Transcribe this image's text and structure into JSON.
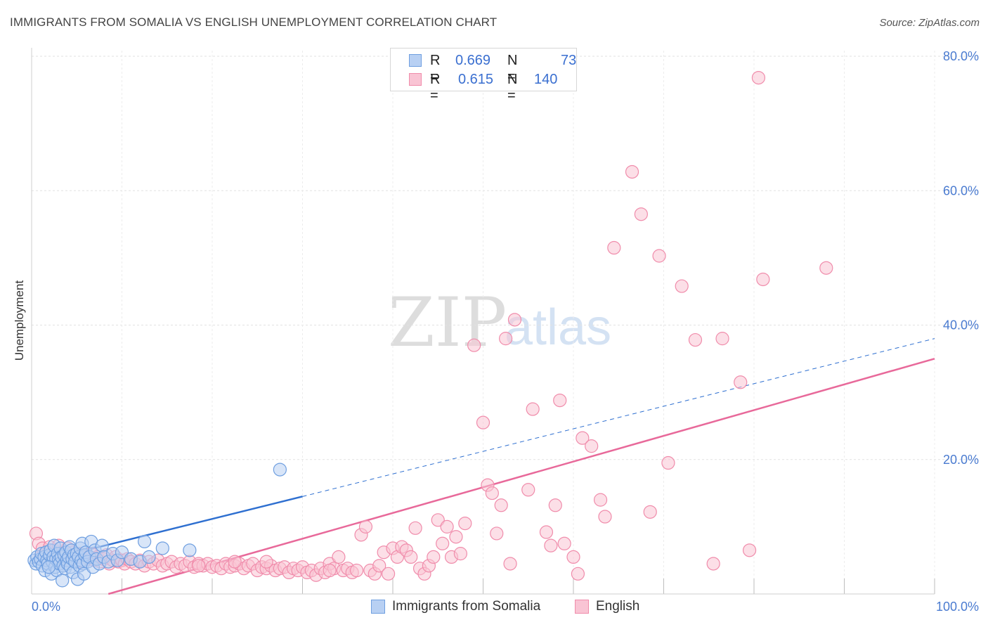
{
  "chart_data": {
    "type": "scatter",
    "title": "IMMIGRANTS FROM SOMALIA VS ENGLISH UNEMPLOYMENT CORRELATION CHART",
    "source": "Source: ZipAtlas.com",
    "xlabel": "",
    "ylabel": "Unemployment",
    "xlim": [
      0,
      100
    ],
    "ylim": [
      0,
      80
    ],
    "x_ticks": [
      "0.0%",
      "100.0%"
    ],
    "y_ticks": [
      {
        "value": 20,
        "label": "20.0%"
      },
      {
        "value": 40,
        "label": "40.0%"
      },
      {
        "value": 60,
        "label": "60.0%"
      },
      {
        "value": 80,
        "label": "80.0%"
      }
    ],
    "grid": true,
    "watermark": {
      "zip": "ZIP",
      "atlas": "atlas"
    },
    "legend": {
      "rows": [
        {
          "r_label": "R =",
          "r_value": "0.669",
          "n_label": "N =",
          "n_value": "73",
          "series": "Immigrants from Somalia"
        },
        {
          "r_label": "R =",
          "r_value": "0.615",
          "n_label": "N =",
          "n_value": "140",
          "series": "English"
        }
      ]
    },
    "series": [
      {
        "name": "Immigrants from Somalia",
        "color": "#6f9fe0",
        "fill": "#b8d0f3",
        "line_color": "#2e6fd0",
        "trend": {
          "x0": 0,
          "y0": 4.5,
          "x1": 30,
          "y1": 14.5,
          "x_dash_end": 100,
          "y_dash_end": 38.0
        },
        "points": [
          [
            0.3,
            5.0
          ],
          [
            0.5,
            4.5
          ],
          [
            0.6,
            5.5
          ],
          [
            0.8,
            4.8
          ],
          [
            1.0,
            5.2
          ],
          [
            1.1,
            6.0
          ],
          [
            1.2,
            4.2
          ],
          [
            1.4,
            5.5
          ],
          [
            1.5,
            3.5
          ],
          [
            1.6,
            6.2
          ],
          [
            1.7,
            5.0
          ],
          [
            1.8,
            4.5
          ],
          [
            2.0,
            5.8
          ],
          [
            2.1,
            6.5
          ],
          [
            2.2,
            3.0
          ],
          [
            2.3,
            4.8
          ],
          [
            2.4,
            5.5
          ],
          [
            2.5,
            7.2
          ],
          [
            2.6,
            4.0
          ],
          [
            2.7,
            5.2
          ],
          [
            2.8,
            3.5
          ],
          [
            2.9,
            6.0
          ],
          [
            3.0,
            5.0
          ],
          [
            3.1,
            4.5
          ],
          [
            3.2,
            6.8
          ],
          [
            3.3,
            5.5
          ],
          [
            3.4,
            2.0
          ],
          [
            3.5,
            4.2
          ],
          [
            3.6,
            5.8
          ],
          [
            3.7,
            3.8
          ],
          [
            3.8,
            6.2
          ],
          [
            3.9,
            5.0
          ],
          [
            4.0,
            4.5
          ],
          [
            4.1,
            5.5
          ],
          [
            4.2,
            7.0
          ],
          [
            4.3,
            4.0
          ],
          [
            4.4,
            6.5
          ],
          [
            4.5,
            5.2
          ],
          [
            4.6,
            3.2
          ],
          [
            4.7,
            5.8
          ],
          [
            4.8,
            4.8
          ],
          [
            5.0,
            6.0
          ],
          [
            5.1,
            2.2
          ],
          [
            5.2,
            5.5
          ],
          [
            5.3,
            4.2
          ],
          [
            5.4,
            6.8
          ],
          [
            5.5,
            5.0
          ],
          [
            5.6,
            7.5
          ],
          [
            5.7,
            4.5
          ],
          [
            5.8,
            3.0
          ],
          [
            5.9,
            5.8
          ],
          [
            6.0,
            6.2
          ],
          [
            6.2,
            4.8
          ],
          [
            6.4,
            5.5
          ],
          [
            6.6,
            7.8
          ],
          [
            6.8,
            4.0
          ],
          [
            7.0,
            6.5
          ],
          [
            7.2,
            5.2
          ],
          [
            7.5,
            4.5
          ],
          [
            7.8,
            7.2
          ],
          [
            8.0,
            5.5
          ],
          [
            8.5,
            4.8
          ],
          [
            9.0,
            6.0
          ],
          [
            9.5,
            5.0
          ],
          [
            10.0,
            6.2
          ],
          [
            11.0,
            5.2
          ],
          [
            12.0,
            4.8
          ],
          [
            12.5,
            7.8
          ],
          [
            13.0,
            5.5
          ],
          [
            14.5,
            6.8
          ],
          [
            17.5,
            6.5
          ],
          [
            27.5,
            18.5
          ],
          [
            1.9,
            4.0
          ]
        ]
      },
      {
        "name": "English",
        "color": "#f08cab",
        "fill": "#f9c4d4",
        "line_color": "#e8699a",
        "trend": {
          "x0": 8.5,
          "y0": 0.0,
          "x1": 100,
          "y1": 35.0
        },
        "points": [
          [
            0.5,
            9.0
          ],
          [
            0.8,
            7.5
          ],
          [
            1.0,
            5.5
          ],
          [
            1.2,
            6.8
          ],
          [
            1.5,
            5.0
          ],
          [
            1.8,
            6.2
          ],
          [
            2.0,
            7.0
          ],
          [
            2.2,
            5.8
          ],
          [
            2.5,
            6.5
          ],
          [
            2.8,
            5.2
          ],
          [
            3.0,
            7.2
          ],
          [
            3.3,
            6.0
          ],
          [
            3.6,
            5.5
          ],
          [
            4.0,
            6.8
          ],
          [
            4.3,
            5.0
          ],
          [
            4.6,
            6.2
          ],
          [
            5.0,
            5.5
          ],
          [
            5.3,
            6.0
          ],
          [
            5.6,
            4.8
          ],
          [
            6.0,
            5.8
          ],
          [
            6.3,
            5.2
          ],
          [
            6.6,
            6.0
          ],
          [
            7.0,
            5.0
          ],
          [
            7.3,
            5.5
          ],
          [
            7.6,
            4.8
          ],
          [
            8.0,
            5.2
          ],
          [
            8.3,
            5.8
          ],
          [
            8.6,
            4.5
          ],
          [
            9.0,
            5.0
          ],
          [
            9.3,
            5.5
          ],
          [
            9.6,
            4.8
          ],
          [
            10.0,
            5.0
          ],
          [
            10.3,
            4.5
          ],
          [
            10.6,
            5.2
          ],
          [
            11.0,
            4.8
          ],
          [
            11.5,
            4.5
          ],
          [
            12.0,
            5.0
          ],
          [
            12.5,
            4.2
          ],
          [
            13.0,
            4.8
          ],
          [
            13.5,
            4.5
          ],
          [
            14.0,
            5.0
          ],
          [
            14.5,
            4.2
          ],
          [
            15.0,
            4.5
          ],
          [
            15.5,
            4.8
          ],
          [
            16.0,
            4.0
          ],
          [
            16.5,
            4.5
          ],
          [
            17.0,
            4.2
          ],
          [
            17.5,
            4.8
          ],
          [
            18.0,
            4.0
          ],
          [
            18.5,
            4.5
          ],
          [
            19.0,
            4.2
          ],
          [
            19.5,
            4.5
          ],
          [
            20.0,
            4.0
          ],
          [
            20.5,
            4.2
          ],
          [
            21.0,
            3.8
          ],
          [
            21.5,
            4.5
          ],
          [
            22.0,
            4.0
          ],
          [
            22.5,
            4.2
          ],
          [
            23.0,
            4.5
          ],
          [
            23.5,
            3.8
          ],
          [
            24.0,
            4.2
          ],
          [
            24.5,
            4.5
          ],
          [
            25.0,
            3.5
          ],
          [
            25.5,
            4.0
          ],
          [
            26.0,
            3.8
          ],
          [
            26.5,
            4.2
          ],
          [
            27.0,
            3.5
          ],
          [
            27.5,
            3.8
          ],
          [
            28.0,
            4.0
          ],
          [
            28.5,
            3.2
          ],
          [
            29.0,
            3.8
          ],
          [
            29.5,
            3.5
          ],
          [
            30.0,
            4.0
          ],
          [
            30.5,
            3.2
          ],
          [
            31.0,
            3.5
          ],
          [
            31.5,
            2.8
          ],
          [
            32.0,
            3.8
          ],
          [
            32.5,
            3.2
          ],
          [
            33.0,
            4.5
          ],
          [
            33.5,
            3.8
          ],
          [
            34.0,
            5.5
          ],
          [
            34.5,
            3.5
          ],
          [
            35.0,
            3.8
          ],
          [
            35.5,
            3.2
          ],
          [
            36.0,
            3.5
          ],
          [
            36.5,
            8.8
          ],
          [
            37.0,
            10.0
          ],
          [
            37.5,
            3.5
          ],
          [
            38.0,
            3.0
          ],
          [
            38.5,
            4.2
          ],
          [
            39.0,
            6.2
          ],
          [
            39.5,
            3.0
          ],
          [
            40.0,
            6.8
          ],
          [
            40.5,
            5.5
          ],
          [
            41.0,
            7.0
          ],
          [
            41.5,
            6.5
          ],
          [
            42.0,
            5.5
          ],
          [
            42.5,
            9.8
          ],
          [
            43.0,
            3.8
          ],
          [
            43.5,
            3.0
          ],
          [
            44.0,
            4.2
          ],
          [
            44.5,
            5.5
          ],
          [
            45.0,
            11.0
          ],
          [
            45.5,
            7.5
          ],
          [
            46.0,
            10.0
          ],
          [
            46.5,
            5.5
          ],
          [
            47.0,
            8.5
          ],
          [
            47.5,
            6.0
          ],
          [
            48.0,
            10.5
          ],
          [
            49.0,
            37.0
          ],
          [
            50.0,
            25.5
          ],
          [
            50.5,
            16.2
          ],
          [
            51.0,
            15.0
          ],
          [
            51.5,
            9.0
          ],
          [
            52.0,
            13.2
          ],
          [
            52.5,
            38.0
          ],
          [
            53.0,
            4.5
          ],
          [
            53.5,
            40.8
          ],
          [
            55.0,
            15.5
          ],
          [
            55.5,
            27.5
          ],
          [
            57.0,
            9.2
          ],
          [
            57.5,
            7.2
          ],
          [
            58.0,
            13.2
          ],
          [
            58.5,
            28.8
          ],
          [
            59.0,
            7.5
          ],
          [
            60.0,
            5.5
          ],
          [
            60.5,
            3.0
          ],
          [
            61.0,
            23.2
          ],
          [
            62.0,
            22.0
          ],
          [
            63.0,
            14.0
          ],
          [
            63.5,
            11.5
          ],
          [
            64.5,
            51.5
          ],
          [
            66.5,
            62.8
          ],
          [
            67.5,
            56.5
          ],
          [
            68.5,
            12.2
          ],
          [
            69.5,
            50.3
          ],
          [
            70.5,
            19.5
          ],
          [
            72.0,
            45.8
          ],
          [
            73.5,
            37.8
          ],
          [
            75.5,
            4.5
          ],
          [
            76.5,
            38.0
          ],
          [
            78.5,
            31.5
          ],
          [
            79.5,
            6.5
          ],
          [
            80.5,
            76.8
          ],
          [
            81.0,
            46.8
          ],
          [
            88.0,
            48.5
          ],
          [
            26.0,
            4.8
          ],
          [
            18.5,
            4.2
          ],
          [
            22.5,
            4.8
          ],
          [
            33.0,
            3.5
          ]
        ]
      }
    ]
  }
}
